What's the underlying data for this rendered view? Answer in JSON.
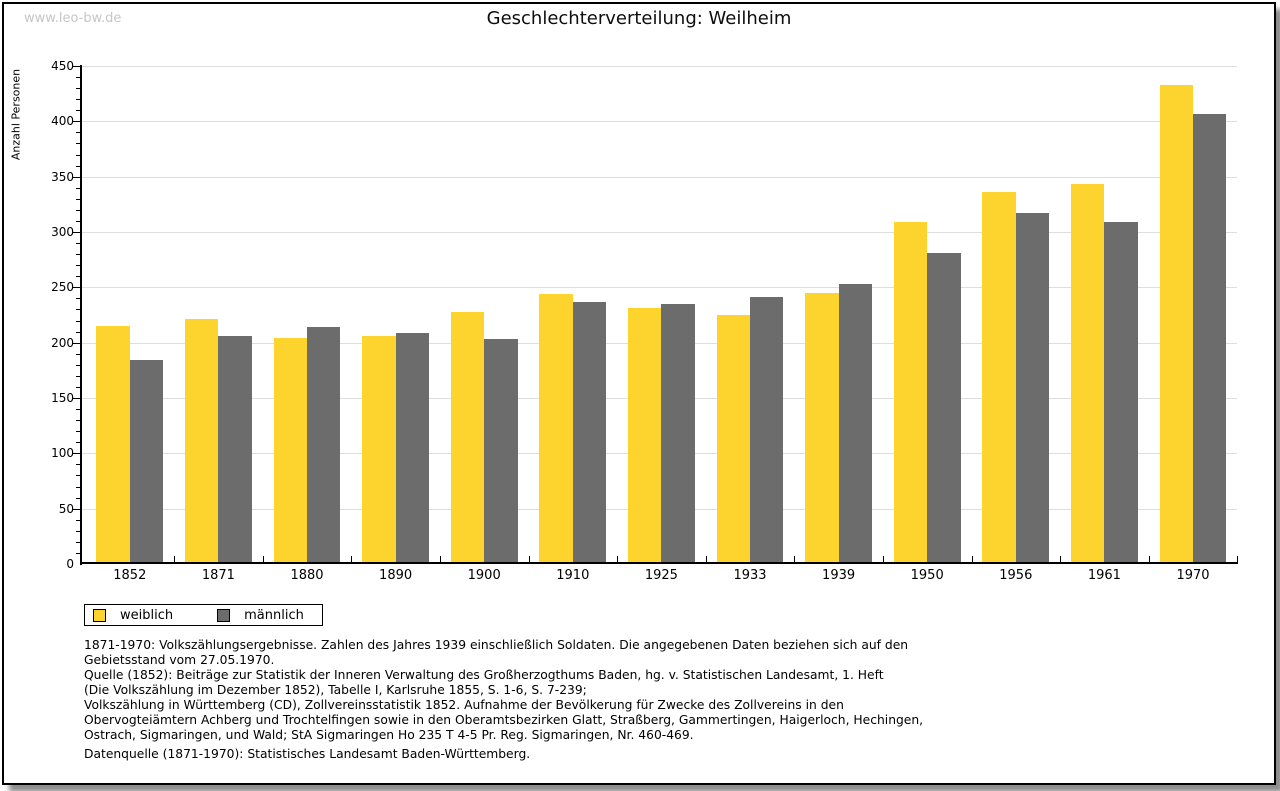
{
  "page": {
    "watermark": "www.leo-bw.de"
  },
  "chart_data": {
    "type": "bar",
    "title": "Geschlechterverteilung: Weilheim",
    "xlabel": "",
    "ylabel": "Anzahl Personen",
    "ylim": [
      0,
      450
    ],
    "ytick_major_step": 50,
    "ytick_minor_step": 10,
    "grid": true,
    "legend_position": "bottom-left",
    "categories": [
      "1852",
      "1871",
      "1880",
      "1890",
      "1900",
      "1910",
      "1925",
      "1933",
      "1939",
      "1950",
      "1956",
      "1961",
      "1970"
    ],
    "series": [
      {
        "name": "weiblich",
        "color": "#FCD42D",
        "values": [
          215,
          221,
          204,
          206,
          228,
          244,
          231,
          225,
          245,
          309,
          336,
          343,
          433
        ]
      },
      {
        "name": "männlich",
        "color": "#6C6C6C",
        "values": [
          184,
          206,
          214,
          209,
          203,
          237,
          235,
          241,
          253,
          281,
          317,
          309,
          407
        ]
      }
    ]
  },
  "footnotes": {
    "lines": [
      "1871-1970: Volkszählungsergebnisse. Zahlen des Jahres 1939 einschließlich Soldaten. Die angegebenen Daten beziehen sich auf den",
      "Gebietsstand vom 27.05.1970.",
      "Quelle (1852): Beiträge zur Statistik der Inneren Verwaltung des Großherzogthums Baden, hg. v. Statistischen Landesamt, 1. Heft",
      "(Die Volkszählung im Dezember 1852), Tabelle I, Karlsruhe 1855, S. 1-6, S. 7-239;",
      "Volkszählung in Württemberg (CD), Zollvereinsstatistik 1852. Aufnahme der Bevölkerung für Zwecke des Zollvereins in den",
      "Obervogteiämtern Achberg und Trochtelfingen sowie in den Oberamtsbezirken Glatt, Straßberg, Gammertingen, Haigerloch, Hechingen,",
      "Ostrach, Sigmaringen, und Wald; StA Sigmaringen Ho 235 T 4-5 Pr. Reg. Sigmaringen, Nr. 460-469."
    ],
    "datasource": "Datenquelle (1871-1970): Statistisches Landesamt Baden-Württemberg."
  }
}
